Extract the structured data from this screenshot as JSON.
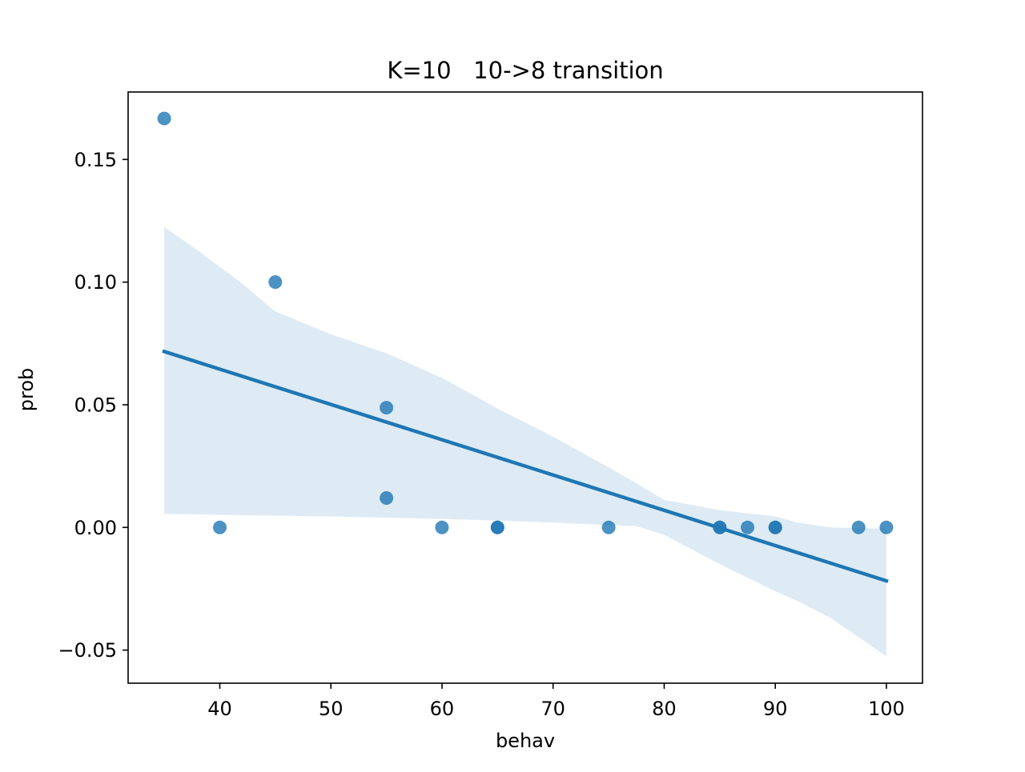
{
  "chart_data": {
    "type": "scatter",
    "title": "K=10   10->8 transition",
    "xlabel": "behav",
    "ylabel": "prob",
    "xlim": [
      31.75,
      103.25
    ],
    "ylim": [
      -0.0635,
      0.1775
    ],
    "x_ticks": [
      40,
      50,
      60,
      70,
      80,
      90,
      100
    ],
    "x_tick_labels": [
      "40",
      "50",
      "60",
      "70",
      "80",
      "90",
      "100"
    ],
    "y_ticks": [
      -0.05,
      0.0,
      0.05,
      0.1,
      0.15
    ],
    "y_tick_labels": [
      "−0.05",
      "0.00",
      "0.05",
      "0.10",
      "0.15"
    ],
    "grid": false,
    "legend": "none",
    "colors": {
      "points": "#1f77b4",
      "band": "#1f77b4",
      "line": "#1f77b4"
    },
    "series": [
      {
        "x": [
          35,
          40,
          45,
          55,
          55,
          60,
          65,
          65,
          75,
          85,
          85,
          87.5,
          90,
          90,
          97.5,
          100
        ],
        "y": [
          0.1667,
          0.0,
          0.1,
          0.0488,
          0.012,
          0.0,
          0.0,
          0.0,
          0.0,
          0.0,
          0.0,
          0.0,
          0.0,
          0.0,
          0.0,
          0.0
        ]
      }
    ],
    "regression": {
      "x": [
        35,
        100
      ],
      "y": [
        0.0717,
        -0.0218
      ]
    },
    "confidence_band": {
      "x": [
        35,
        38,
        42,
        45,
        50,
        55,
        60,
        65,
        70,
        75,
        77.5,
        80,
        85,
        90,
        92,
        95,
        100
      ],
      "upper": [
        0.1225,
        0.113,
        0.0995,
        0.088,
        0.0788,
        0.071,
        0.061,
        0.0485,
        0.037,
        0.0245,
        0.018,
        0.0112,
        0.007,
        0.0045,
        0.002,
        0.0,
        -0.0005
      ],
      "lower": [
        0.0055,
        0.0053,
        0.005,
        0.0048,
        0.0045,
        0.004,
        0.0035,
        0.0028,
        0.002,
        0.001,
        0.0005,
        -0.003,
        -0.015,
        -0.026,
        -0.03,
        -0.037,
        -0.0525
      ]
    }
  }
}
